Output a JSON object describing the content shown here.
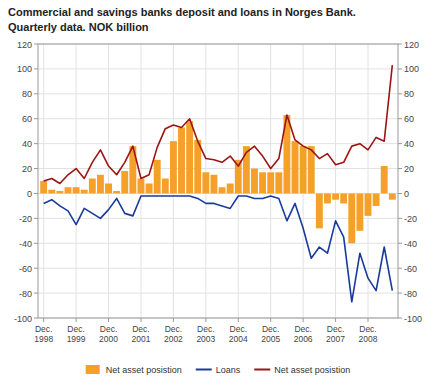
{
  "chart_data": {
    "type": "bar",
    "title": "Commercial and savings banks deposit and loans in Norges Bank.",
    "subtitle": "Quarterly data. NOK billion",
    "categories": [
      "Dec.\n1998",
      null,
      null,
      null,
      "Dec.\n1999",
      null,
      null,
      null,
      "Dec.\n2000",
      null,
      null,
      null,
      "Dec.\n2001",
      null,
      null,
      null,
      "Dec.\n2002",
      null,
      null,
      null,
      "Dec.\n2003",
      null,
      null,
      null,
      "Dec.\n2004",
      null,
      null,
      null,
      "Dec.\n2005",
      null,
      null,
      null,
      "Dec.\n2006",
      null,
      null,
      null,
      "Dec.\n2007",
      null,
      null,
      null,
      "Dec.\n2008",
      null,
      null,
      null
    ],
    "series": [
      {
        "name": "Net asset posistion",
        "type": "bar",
        "color": "#f5a028",
        "values": [
          10,
          3,
          2,
          5,
          5,
          3,
          12,
          15,
          8,
          2,
          18,
          38,
          12,
          8,
          27,
          12,
          42,
          53,
          58,
          43,
          17,
          15,
          5,
          8,
          27,
          38,
          20,
          17,
          17,
          17,
          63,
          42,
          38,
          38,
          -28,
          -8,
          -5,
          -8,
          -40,
          -30,
          -18,
          -10,
          22,
          -5
        ]
      },
      {
        "name": "Loans",
        "type": "line",
        "color": "#1a3a9c",
        "values": [
          -8,
          -5,
          -10,
          -14,
          -25,
          -12,
          -16,
          -20,
          -13,
          -4,
          -16,
          -18,
          -2,
          -2,
          -2,
          -2,
          -2,
          -2,
          -2,
          -4,
          -8,
          -8,
          -10,
          -12,
          -2,
          -2,
          -4,
          -4,
          -2,
          -4,
          -22,
          -8,
          -28,
          -52,
          -43,
          -48,
          -22,
          -35,
          -87,
          -48,
          -68,
          -78,
          -43,
          -78
        ]
      },
      {
        "name": "Net asset posistion",
        "type": "line",
        "color": "#9b1515",
        "axis": "y2",
        "values": [
          10,
          12,
          8,
          15,
          20,
          12,
          25,
          35,
          22,
          15,
          25,
          38,
          12,
          15,
          37,
          52,
          55,
          53,
          60,
          42,
          28,
          27,
          25,
          30,
          22,
          33,
          38,
          30,
          20,
          28,
          63,
          43,
          38,
          35,
          28,
          32,
          23,
          25,
          38,
          40,
          35,
          45,
          42,
          103
        ]
      }
    ],
    "ylim": [
      -100,
      120
    ],
    "yticks": [
      -100,
      -80,
      -60,
      -40,
      -20,
      0,
      20,
      40,
      60,
      80,
      100,
      120
    ],
    "y2lim": [
      -100,
      120
    ],
    "y2ticks": [
      -100,
      -80,
      -60,
      -40,
      -20,
      0,
      20,
      40,
      60,
      80,
      100,
      120
    ],
    "grid": true,
    "legend": "bottom"
  }
}
